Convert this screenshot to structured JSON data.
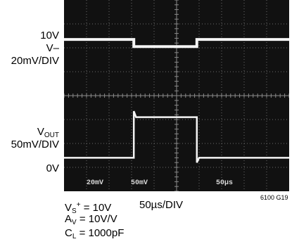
{
  "labels": {
    "top_level": "10V",
    "vin": "V–",
    "vin_scale": "20mV/DIV",
    "vout_main": "V",
    "vout_sub": "OUT",
    "vout_scale": "50mV/DIV",
    "zero": "0V"
  },
  "caption": {
    "vs_main": "V",
    "vs_sub": "S",
    "vs_sup": "+",
    "vs_rest": " = 10V",
    "av_main": "A",
    "av_sub": "V",
    "av_rest": " = 10V/V",
    "cl_main": "C",
    "cl_sub": "L",
    "cl_rest": " = 1000pF",
    "timebase": "50µs/DIV"
  },
  "figure_id": "6100 G19",
  "screen_text": {
    "ch1": "20mV",
    "ch2": "50mV",
    "time": "50µs"
  },
  "chart_data": {
    "type": "line",
    "title": "",
    "xlabel": "50µs/DIV",
    "ylabel": "",
    "x_divisions": 10,
    "y_divisions": 8,
    "grid": true,
    "series": [
      {
        "name": "V–",
        "scale": "20mV/DIV",
        "x": [
          0,
          3.1,
          3.1,
          5.9,
          5.9,
          10
        ],
        "y": [
          6.35,
          6.35,
          6.05,
          6.05,
          6.35,
          6.35
        ]
      },
      {
        "name": "VOUT",
        "scale": "50mV/DIV",
        "x": [
          0,
          3.1,
          3.1,
          3.2,
          5.9,
          5.9,
          6.0,
          10
        ],
        "y": [
          1.4,
          1.4,
          3.35,
          3.1,
          3.1,
          1.2,
          1.4,
          1.4
        ]
      }
    ],
    "reference_levels": [
      {
        "label": "10V",
        "level": 6.35
      },
      {
        "label": "0V",
        "level": 1.4
      }
    ]
  }
}
